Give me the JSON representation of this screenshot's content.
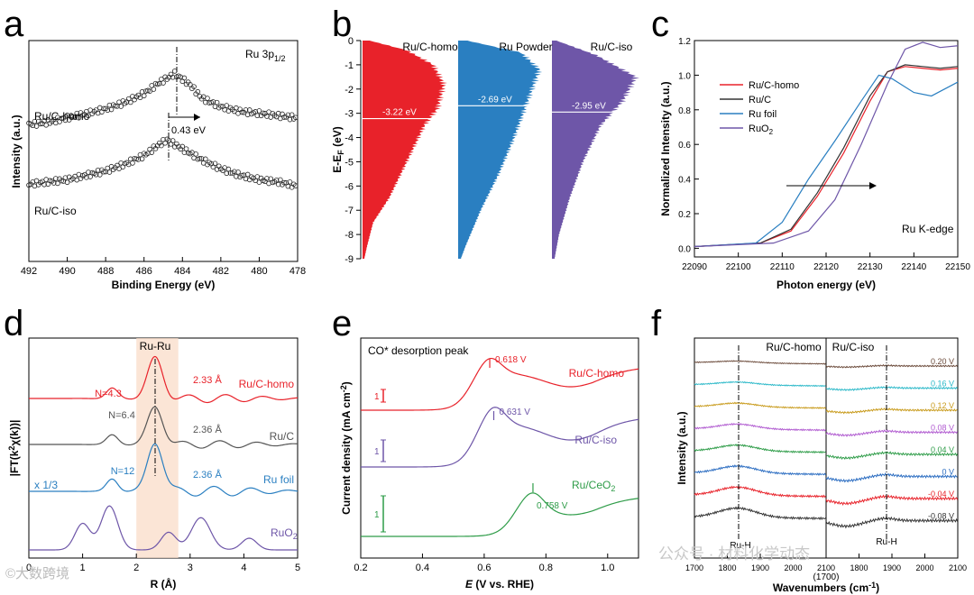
{
  "chart_data": [
    {
      "panel": "a",
      "type": "scatter",
      "xlabel": "Binding Energy (eV)",
      "ylabel": "Intensity (a.u.)",
      "xlim": [
        492,
        478
      ],
      "xticks": [
        "492",
        "490",
        "488",
        "486",
        "484",
        "482",
        "480",
        "478"
      ],
      "annotation": "Ru 3p",
      "annotation_sub": "1/2",
      "shift_label": "0.43 eV",
      "series": [
        {
          "name": "Ru/C-homo",
          "peak_x": 484.4,
          "points": [
            [
              492,
              0.62
            ],
            [
              491,
              0.63
            ],
            [
              490,
              0.65
            ],
            [
              489,
              0.67
            ],
            [
              488,
              0.69
            ],
            [
              487,
              0.72
            ],
            [
              486,
              0.76
            ],
            [
              485.2,
              0.81
            ],
            [
              484.4,
              0.85
            ],
            [
              483.6,
              0.8
            ],
            [
              483,
              0.74
            ],
            [
              482,
              0.7
            ],
            [
              481,
              0.68
            ],
            [
              480,
              0.67
            ],
            [
              479,
              0.66
            ],
            [
              478,
              0.65
            ]
          ]
        },
        {
          "name": "Ru/C-iso",
          "peak_x": 484.8,
          "points": [
            [
              492,
              0.35
            ],
            [
              491,
              0.36
            ],
            [
              490,
              0.37
            ],
            [
              489,
              0.39
            ],
            [
              488,
              0.41
            ],
            [
              487,
              0.44
            ],
            [
              486,
              0.48
            ],
            [
              485.2,
              0.53
            ],
            [
              484.8,
              0.55
            ],
            [
              484,
              0.51
            ],
            [
              483,
              0.46
            ],
            [
              482,
              0.42
            ],
            [
              481,
              0.39
            ],
            [
              480,
              0.37
            ],
            [
              479,
              0.36
            ],
            [
              478,
              0.34
            ]
          ]
        }
      ]
    },
    {
      "panel": "b",
      "type": "area",
      "ylabel": "E-E",
      "ylabel_sub": "F",
      "ylabel_unit": " (eV)",
      "ylim": [
        0,
        -9
      ],
      "yticks": [
        "0",
        "-1",
        "-2",
        "-3",
        "-4",
        "-5",
        "-6",
        "-7",
        "-8",
        "-9"
      ],
      "series": [
        {
          "name": "Ru/C-homo",
          "color": "#e8222a",
          "center": -3.22,
          "center_label": "-3.22 eV",
          "profile": [
            [
              0,
              0.08
            ],
            [
              -0.4,
              0.5
            ],
            [
              -1,
              0.8
            ],
            [
              -1.8,
              0.92
            ],
            [
              -2.8,
              0.85
            ],
            [
              -3.5,
              0.7
            ],
            [
              -5,
              0.5
            ],
            [
              -6.5,
              0.3
            ],
            [
              -7.5,
              0.12
            ],
            [
              -8.5,
              0.05
            ],
            [
              -9,
              0.02
            ]
          ]
        },
        {
          "name": "Ru Powder",
          "color": "#2a7fc1",
          "center": -2.69,
          "center_label": "-2.69 eV",
          "profile": [
            [
              0,
              0.1
            ],
            [
              -0.5,
              0.7
            ],
            [
              -1.2,
              0.9
            ],
            [
              -2,
              0.82
            ],
            [
              -3,
              0.72
            ],
            [
              -4,
              0.62
            ],
            [
              -5.5,
              0.45
            ],
            [
              -7,
              0.25
            ],
            [
              -8.5,
              0.08
            ],
            [
              -9,
              0.03
            ]
          ]
        },
        {
          "name": "Ru/C-iso",
          "color": "#6e56a8",
          "center": -2.95,
          "center_label": "-2.95 eV",
          "profile": [
            [
              0,
              0.05
            ],
            [
              -0.6,
              0.5
            ],
            [
              -1.5,
              0.95
            ],
            [
              -2.5,
              0.8
            ],
            [
              -3.5,
              0.55
            ],
            [
              -5,
              0.35
            ],
            [
              -6.5,
              0.2
            ],
            [
              -8,
              0.08
            ],
            [
              -9,
              0.03
            ]
          ]
        }
      ]
    },
    {
      "panel": "c",
      "type": "line",
      "xlabel": "Photon energy (eV)",
      "ylabel": "Normalized Intensity (a.u.)",
      "xlim": [
        22090,
        22150
      ],
      "ylim": [
        -0.05,
        1.2
      ],
      "xticks": [
        "22090",
        "22100",
        "22110",
        "22120",
        "22130",
        "22140",
        "22150"
      ],
      "yticks": [
        "0.0",
        "0.2",
        "0.4",
        "0.6",
        "0.8",
        "1.0",
        "1.2"
      ],
      "annotation": "Ru K-edge",
      "series": [
        {
          "name": "Ru/C-homo",
          "color": "#e8222a",
          "points": [
            [
              22090,
              0.01
            ],
            [
              22105,
              0.03
            ],
            [
              22112,
              0.1
            ],
            [
              22118,
              0.3
            ],
            [
              22124,
              0.55
            ],
            [
              22130,
              0.85
            ],
            [
              22134,
              1.02
            ],
            [
              22138,
              1.05
            ],
            [
              22142,
              1.04
            ],
            [
              22146,
              1.03
            ],
            [
              22150,
              1.04
            ]
          ]
        },
        {
          "name": "Ru/C",
          "color": "#333333",
          "points": [
            [
              22090,
              0.01
            ],
            [
              22105,
              0.03
            ],
            [
              22112,
              0.11
            ],
            [
              22118,
              0.32
            ],
            [
              22124,
              0.58
            ],
            [
              22130,
              0.88
            ],
            [
              22134,
              1.02
            ],
            [
              22138,
              1.06
            ],
            [
              22142,
              1.05
            ],
            [
              22146,
              1.04
            ],
            [
              22150,
              1.05
            ]
          ]
        },
        {
          "name": "Ru foil",
          "color": "#2a7fc1",
          "points": [
            [
              22090,
              0.01
            ],
            [
              22104,
              0.03
            ],
            [
              22110,
              0.15
            ],
            [
              22116,
              0.4
            ],
            [
              22122,
              0.62
            ],
            [
              22128,
              0.85
            ],
            [
              22132,
              1.0
            ],
            [
              22135,
              0.98
            ],
            [
              22140,
              0.9
            ],
            [
              22144,
              0.88
            ],
            [
              22150,
              0.96
            ]
          ]
        },
        {
          "name": "RuO",
          "name_sub": "2",
          "color": "#6e56a8",
          "points": [
            [
              22090,
              0.01
            ],
            [
              22108,
              0.03
            ],
            [
              22116,
              0.1
            ],
            [
              22122,
              0.28
            ],
            [
              22128,
              0.6
            ],
            [
              22134,
              0.95
            ],
            [
              22138,
              1.15
            ],
            [
              22142,
              1.19
            ],
            [
              22146,
              1.16
            ],
            [
              22150,
              1.17
            ]
          ]
        }
      ]
    },
    {
      "panel": "d",
      "type": "line",
      "xlabel": "R (Å)",
      "ylabel": "|FT(k",
      "ylabel_tail": "χ(k))|",
      "xlim": [
        0,
        5
      ],
      "xticks": [
        "0",
        "1",
        "2",
        "3",
        "4",
        "5"
      ],
      "band_label": "Ru-Ru",
      "band": [
        2.0,
        2.78
      ],
      "scale_note": "x 1/3",
      "series": [
        {
          "name": "Ru/C-homo",
          "color": "#e8222a",
          "N": "N=4.3",
          "dist": "2.33 Å"
        },
        {
          "name": "Ru/C",
          "color": "#555555",
          "N": "N=6.4",
          "dist": "2.36 Å"
        },
        {
          "name": "Ru foil",
          "color": "#2a7fc1",
          "N": "N=12",
          "dist": "2.36 Å"
        },
        {
          "name": "RuO",
          "name_sub": "2",
          "color": "#6e56a8",
          "N": "",
          "dist": ""
        }
      ]
    },
    {
      "panel": "e",
      "type": "line",
      "title": "CO* desorption peak",
      "xlabel": "E (V vs. RHE)",
      "xlabel_italic": "E",
      "xlabel_rest": " (V vs. RHE)",
      "ylabel": "Current density (mA cm",
      "ylabel_sup": "-2",
      "xlim": [
        0.2,
        1.1
      ],
      "xticks": [
        "0.2",
        "0.4",
        "0.6",
        "0.8",
        "1.0"
      ],
      "scale_bar_label": "1",
      "series": [
        {
          "name": "Ru/C-homo",
          "color": "#e8222a",
          "peak": 0.618,
          "peak_label": "0.618 V"
        },
        {
          "name": "Ru/C-iso",
          "color": "#6e56a8",
          "peak": 0.631,
          "peak_label": "0.631 V"
        },
        {
          "name": "Ru/CeO",
          "name_sub": "2",
          "color": "#2e9c48",
          "peak": 0.758,
          "peak_label": "0.758 V"
        }
      ]
    },
    {
      "panel": "f",
      "type": "line",
      "xlabel": "Wavenumbers (cm",
      "xlabel_sup": "-1",
      "ylabel": "Intensity (a.u.)",
      "left_title": "Ru/C-homo",
      "right_title": "Ru/C-iso",
      "xticks_left": [
        "1700",
        "1800",
        "1900",
        "2000",
        "2100"
      ],
      "xticks_right": [
        "1800",
        "1900",
        "2000",
        "2100"
      ],
      "break_label": "(1700)",
      "peak_label": "Ru-H",
      "series": [
        {
          "name": "0.20 V",
          "color": "#6b4a3a"
        },
        {
          "name": "0.16 V",
          "color": "#2ab8c8"
        },
        {
          "name": "0.12 V",
          "color": "#c89a1a"
        },
        {
          "name": "0.08 V",
          "color": "#b05ad0"
        },
        {
          "name": "0.04 V",
          "color": "#2e9c48"
        },
        {
          "name": "0 V",
          "color": "#2a6cc1"
        },
        {
          "name": "-0.04 V",
          "color": "#e8222a"
        },
        {
          "name": "-0.08 V",
          "color": "#333333"
        }
      ]
    }
  ],
  "panel_labels": [
    "a",
    "b",
    "c",
    "d",
    "e",
    "f"
  ],
  "watermark_left": "©大数跨境",
  "watermark_right": "公众号 · 材料化学动态"
}
